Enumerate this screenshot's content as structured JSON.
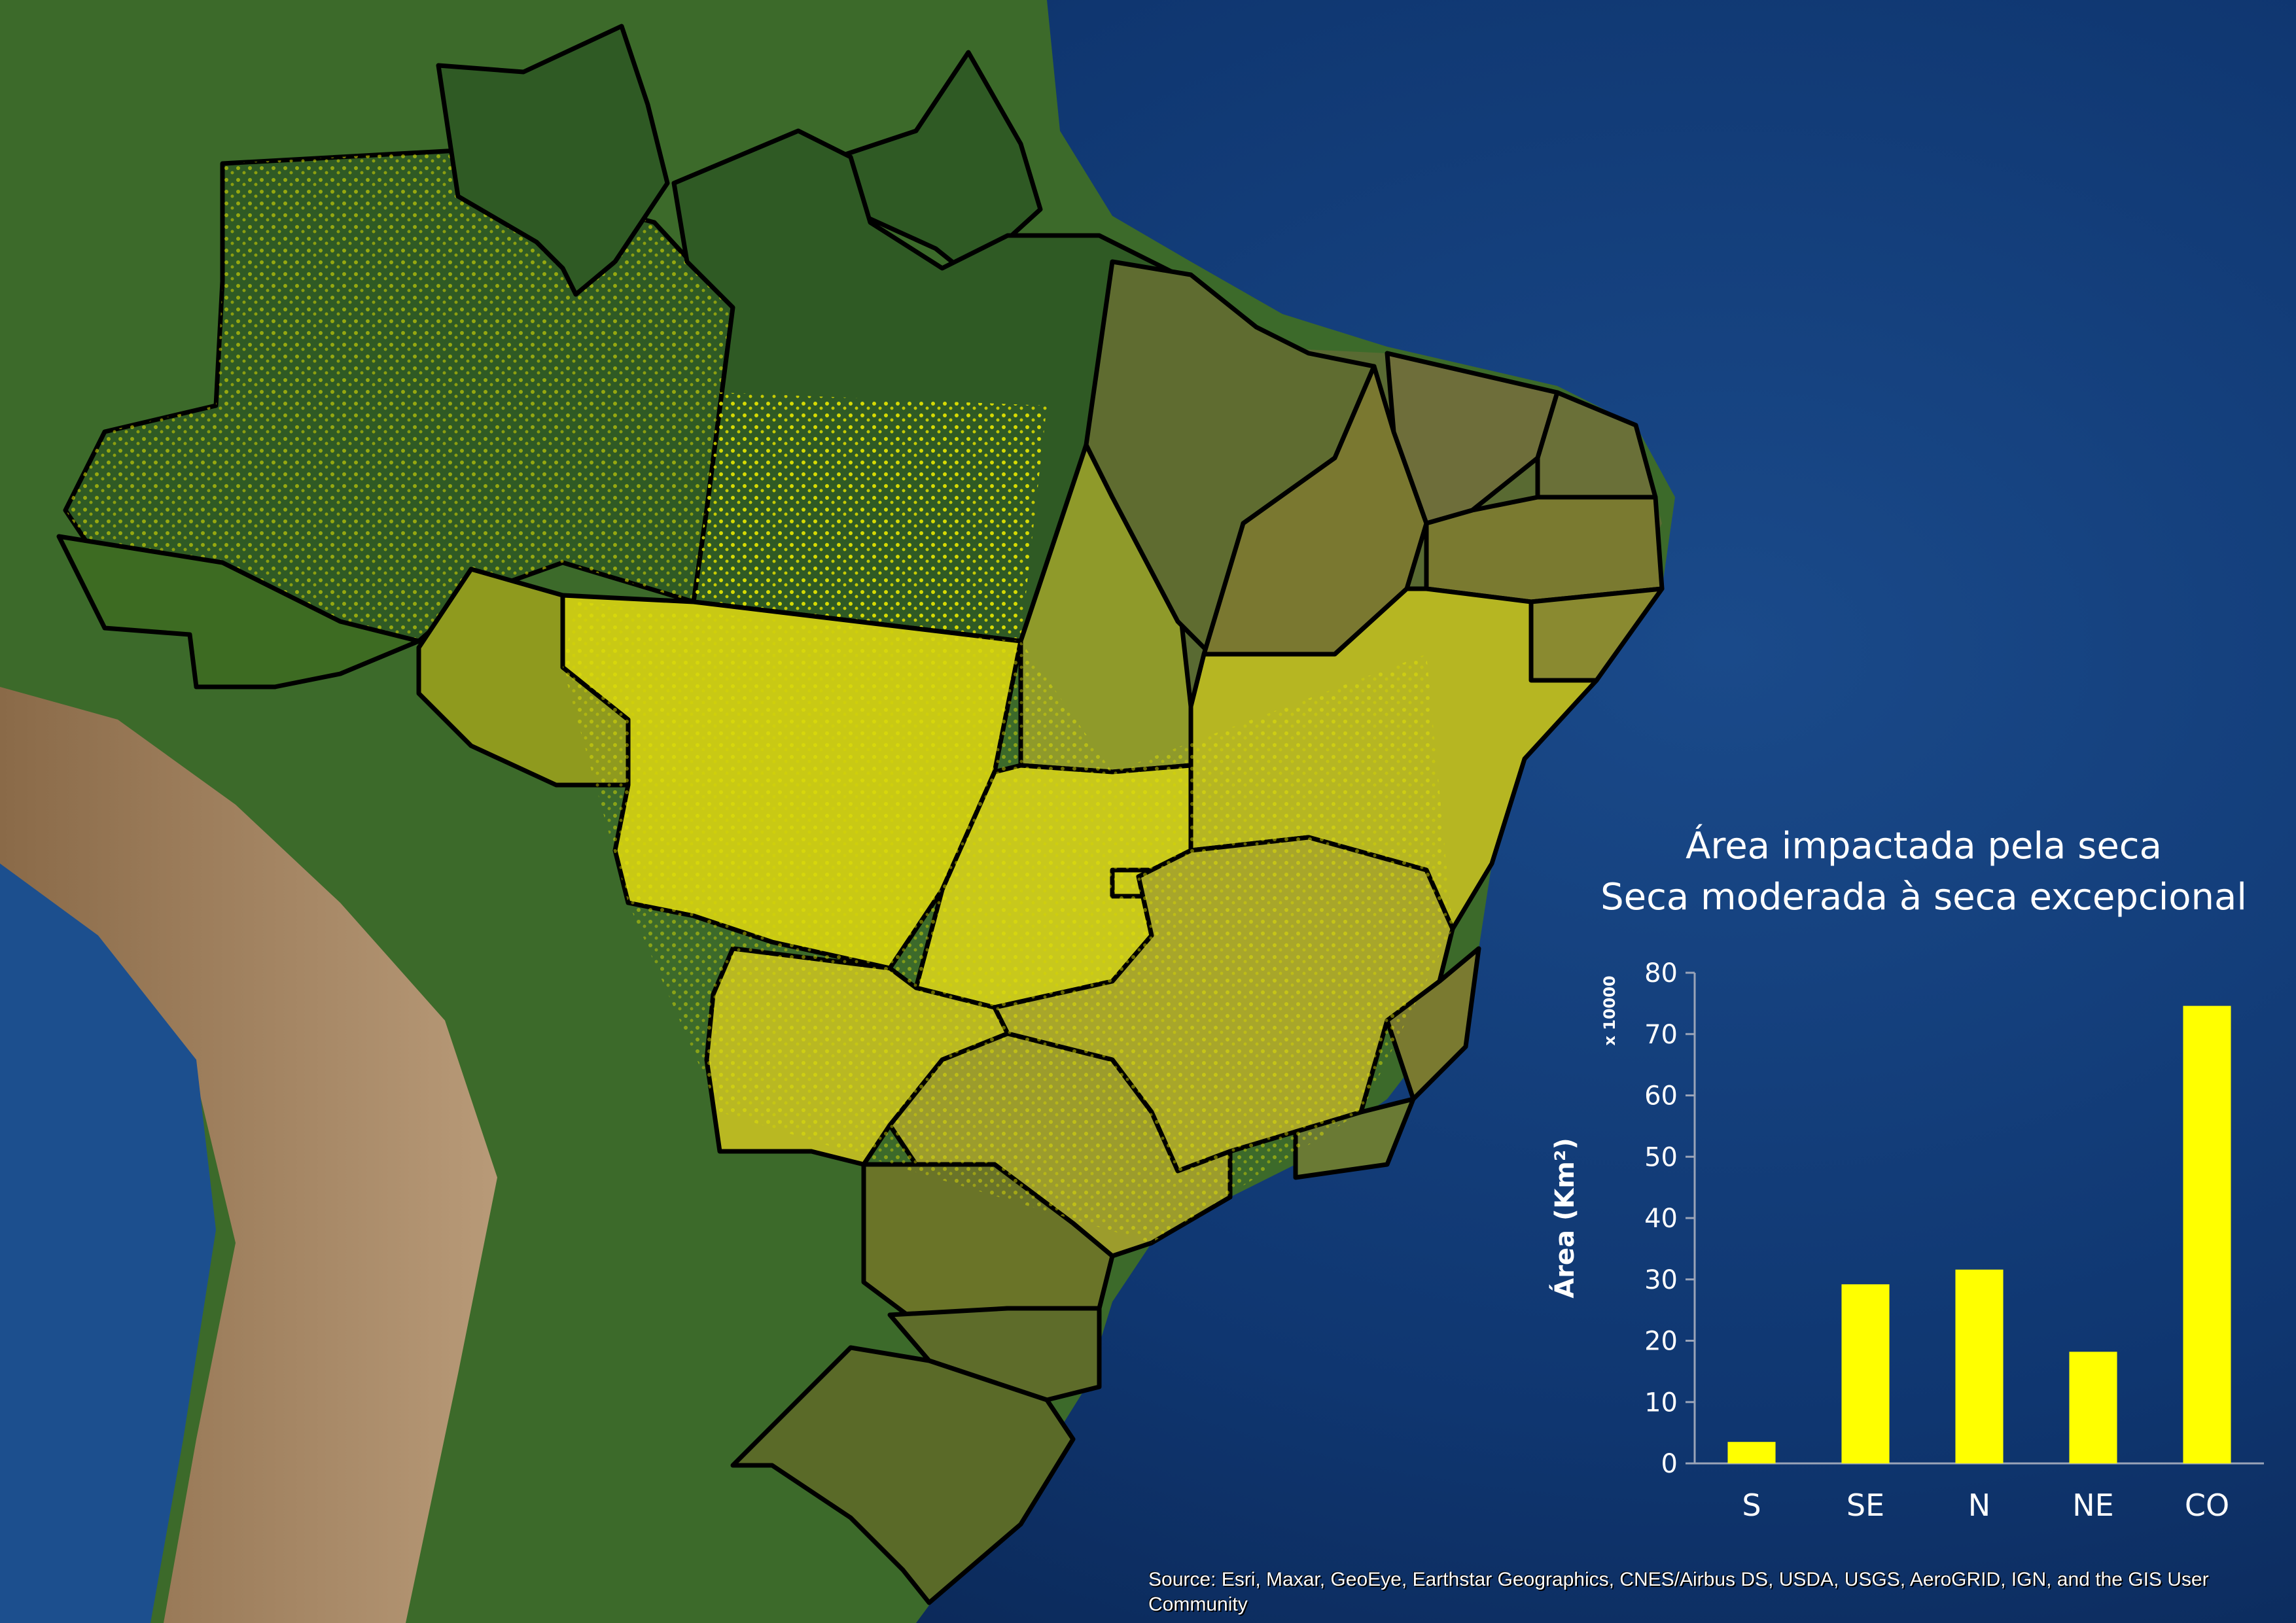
{
  "chart_data": {
    "type": "bar",
    "title": "Área impactada pela seca",
    "subtitle": "Seca moderada à seca excepcional",
    "ylabel": "Área (Km²)",
    "y_multiplier": "x 10000",
    "categories": [
      "S",
      "SE",
      "N",
      "NE",
      "CO"
    ],
    "values": [
      3.5,
      29.2,
      31.6,
      18.2,
      74.6
    ],
    "ylim": [
      0,
      80
    ],
    "yticks": [
      0,
      10,
      20,
      30,
      40,
      50,
      60,
      70,
      80
    ],
    "bar_color": "#ffff00",
    "grid": false,
    "legend": "none"
  },
  "map": {
    "subject": "Brazil states with drought-impacted areas highlighted",
    "ocean_color": "#0d2f63",
    "land_color": "#3f6a2c",
    "impact_color": "#ffff00",
    "border_color": "#000000"
  },
  "attribution": "Source: Esri, Maxar, GeoEye, Earthstar Geographics, CNES/Airbus DS, USDA, USGS, AeroGRID, IGN, and the GIS User Community"
}
